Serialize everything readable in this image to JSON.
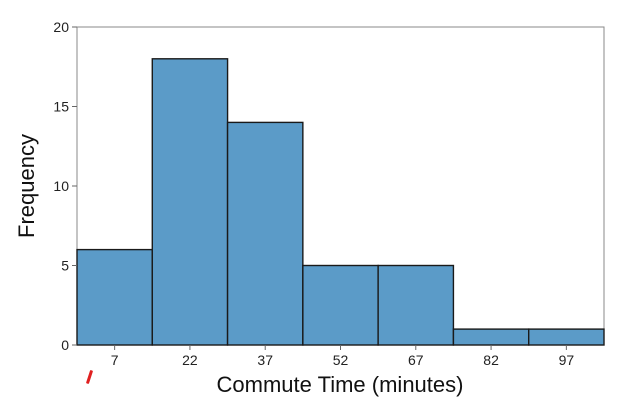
{
  "chart_data": {
    "type": "bar",
    "subtype": "histogram",
    "title": "",
    "xlabel": "Commute Time (minutes)",
    "ylabel": "Frequency",
    "categories": [
      "7",
      "22",
      "37",
      "52",
      "67",
      "82",
      "97"
    ],
    "values": [
      6,
      18,
      14,
      5,
      5,
      1,
      1
    ],
    "yticks": [
      "0",
      "5",
      "10",
      "15",
      "20"
    ],
    "ylim": [
      0,
      20
    ],
    "grid": false,
    "legend": "none",
    "colors": {
      "bar_fill": "#5b9bc8",
      "bar_edge": "#1a1a1a",
      "frame": "#888888"
    }
  }
}
